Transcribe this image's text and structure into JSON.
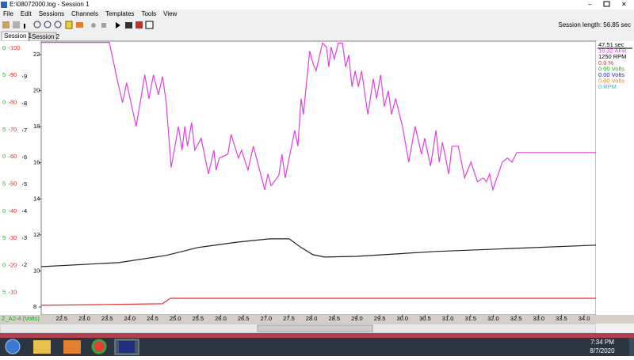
{
  "window": {
    "title": "E:\\08072000.log - Session 1",
    "menu": [
      "File",
      "Edit",
      "Sessions",
      "Channels",
      "Templates",
      "Tools",
      "View"
    ],
    "session_length": "Session length: 56.85 sec",
    "tabs": [
      "Session 1",
      "Session 2"
    ]
  },
  "chart_data": {
    "type": "line",
    "channel_label": "Z_A2-4 (Volts)",
    "xlim": [
      22.05,
      34.26
    ],
    "xticks": [
      22.5,
      {
        "value": 23,
        "label": "23.0"
      },
      23.5,
      {
        "value": 24,
        "label": "24.0"
      },
      24.5,
      {
        "value": 25,
        "label": "25.0"
      },
      25.5,
      {
        "value": 26,
        "label": "26.0"
      },
      26.5,
      {
        "value": 27,
        "label": "27.0"
      },
      27.5,
      {
        "value": 28,
        "label": "28.0"
      },
      28.5,
      {
        "value": 29,
        "label": "29.0"
      },
      29.5,
      {
        "value": 30,
        "label": "30.0"
      },
      30.5,
      {
        "value": 31,
        "label": "31.0"
      },
      31.5,
      {
        "value": 32,
        "label": "32.0"
      },
      32.5,
      {
        "value": 33,
        "label": "33.0"
      },
      33.5,
      {
        "value": 34,
        "label": "34.0"
      }
    ],
    "ylim": [
      7.56,
      22.75
    ],
    "yticks": [
      22,
      20,
      18,
      16,
      14,
      12,
      10,
      8
    ],
    "y2lim": [
      1.75,
      102.6
    ],
    "y2ticks": [
      100,
      90,
      80,
      70,
      60,
      50,
      40,
      30,
      20,
      10
    ],
    "y2color": "#e02828",
    "y3lim": [
      0.15,
      10.32
    ],
    "y3ticks": [
      9,
      8,
      7,
      6,
      5,
      4,
      3,
      2
    ],
    "left_labels": [
      "0",
      "5",
      "0",
      "5",
      "0",
      "5",
      "0",
      "5",
      "0",
      "5"
    ],
    "left_labels_color": "#28b028",
    "series": [
      {
        "color": "#e040e0",
        "x": [
          22.05,
          23.55,
          23.72,
          23.84,
          23.93,
          24.14,
          24.33,
          24.42,
          24.52,
          24.63,
          24.72,
          24.8,
          24.91,
          25.07,
          25.15,
          25.21,
          25.27,
          25.36,
          25.43,
          25.57,
          25.73,
          25.85,
          25.9,
          25.97,
          26.16,
          26.23,
          26.39,
          26.46,
          26.6,
          26.72,
          26.97,
          27.04,
          27.11,
          27.28,
          27.35,
          27.42,
          27.63,
          27.7,
          27.77,
          27.82,
          27.96,
          28.03,
          28.1,
          28.24,
          28.33,
          28.38,
          28.43,
          28.5,
          28.59,
          28.68,
          28.75,
          28.82,
          28.89,
          28.96,
          29.03,
          29.1,
          29.24,
          29.36,
          29.43,
          29.52,
          29.6,
          29.69,
          29.76,
          29.85,
          30.0,
          30.14,
          30.28,
          30.42,
          30.49,
          30.62,
          30.74,
          30.81,
          30.88,
          31.02,
          31.09,
          31.23,
          31.37,
          31.51,
          31.65,
          31.78,
          31.85,
          31.92,
          31.99,
          32.2,
          32.31,
          32.41,
          32.52,
          34.26
        ],
        "values": [
          22.68,
          22.68,
          20.66,
          19.34,
          20.44,
          18.02,
          20.88,
          19.56,
          20.88,
          19.78,
          20.79,
          19.34,
          15.74,
          18.02,
          16.7,
          18.02,
          16.92,
          18.24,
          16.7,
          17.36,
          15.38,
          16.7,
          15.6,
          16.26,
          16.48,
          17.58,
          16.26,
          16.7,
          15.6,
          16.92,
          14.51,
          15.38,
          14.73,
          15.3,
          16.48,
          15.16,
          17.8,
          16.92,
          19.56,
          18.68,
          22.2,
          21.54,
          21.1,
          22.64,
          22.42,
          21.32,
          22.42,
          21.76,
          22.64,
          22.64,
          21.32,
          21.98,
          20.22,
          21.1,
          20.22,
          21.1,
          18.68,
          20.66,
          19.56,
          20.88,
          19.12,
          20.0,
          18.68,
          19.56,
          18.02,
          16.04,
          18.02,
          16.48,
          17.36,
          15.82,
          17.8,
          16.04,
          17.14,
          15.38,
          16.92,
          16.92,
          15.16,
          16.04,
          14.95,
          15.16,
          14.95,
          15.38,
          14.51,
          16.04,
          16.26,
          16.04,
          16.57,
          16.57
        ]
      },
      {
        "color": "#202020",
        "x": [
          22.05,
          23.76,
          24.8,
          25.5,
          26.37,
          27.07,
          27.51,
          27.77,
          28.03,
          28.29,
          28.99,
          30.74,
          32.48,
          34.26
        ],
        "values": [
          10.24,
          10.46,
          10.86,
          11.3,
          11.6,
          11.78,
          11.78,
          11.3,
          10.9,
          10.77,
          10.81,
          11.08,
          11.25,
          11.43
        ]
      },
      {
        "color": "#e83030",
        "x": [
          22.05,
          24.72,
          24.89,
          34.26
        ],
        "values": [
          8.09,
          8.18,
          8.48,
          8.48
        ]
      }
    ],
    "readouts": [
      {
        "text": "47.51 sec",
        "color": "#000000"
      },
      {
        "text": "16.32 AFR",
        "color": "#e040e0"
      },
      {
        "text": "1250 RPM",
        "color": "#000000"
      },
      {
        "text": "0.0 %",
        "color": "#e02828"
      },
      {
        "text": "0.00 Volts",
        "color": "#20b020"
      },
      {
        "text": "0.00 Volts",
        "color": "#2020d0"
      },
      {
        "text": "0.00 Volts",
        "color": "#e08020"
      },
      {
        "text": "0 RPM",
        "color": "#20c0c0"
      }
    ]
  },
  "taskbar": {
    "time": "7:34 PM",
    "date": "8/7/2020"
  }
}
